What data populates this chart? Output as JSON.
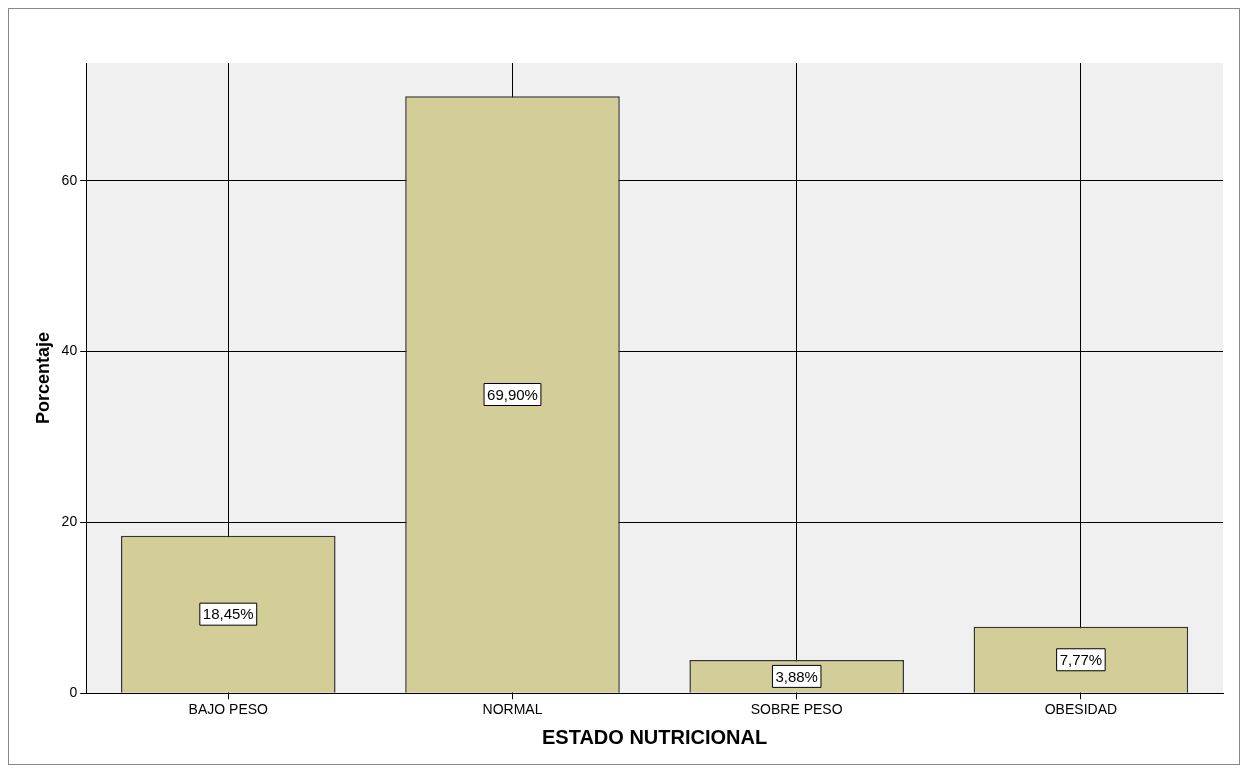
{
  "chart_data": {
    "type": "bar",
    "xlabel": "ESTADO NUTRICIONAL",
    "ylabel": "Porcentaje",
    "categories": [
      "BAJO PESO",
      "NORMAL",
      "SOBRE PESO",
      "OBESIDAD"
    ],
    "values": [
      18.45,
      69.9,
      3.88,
      7.77
    ],
    "value_labels": [
      "18,45%",
      "69,90%",
      "3,88%",
      "7,77%"
    ],
    "color": "#d3ce97",
    "ylim": [
      0,
      73.8
    ],
    "yticks": [
      0,
      20,
      40,
      60
    ],
    "grid": true,
    "legend": false
  }
}
